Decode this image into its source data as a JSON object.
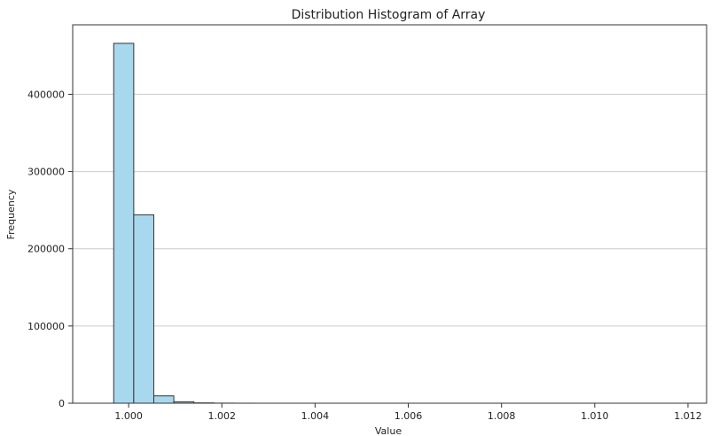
{
  "chart_data": {
    "type": "bar",
    "title": "Distribution Histogram of Array",
    "xlabel": "Value",
    "ylabel": "Frequency",
    "xlim": [
      0.9988,
      1.0124
    ],
    "ylim": [
      0,
      490000
    ],
    "xticks": [
      1.0,
      1.002,
      1.004,
      1.006,
      1.008,
      1.01,
      1.012
    ],
    "xtick_labels": [
      "1.000",
      "1.002",
      "1.004",
      "1.006",
      "1.008",
      "1.010",
      "1.012"
    ],
    "yticks": [
      0,
      100000,
      200000,
      300000,
      400000
    ],
    "ytick_labels": [
      "0",
      "100000",
      "200000",
      "300000",
      "400000"
    ],
    "grid": "y",
    "colors": {
      "bar_fill": "#a8d8ee",
      "bar_edge": "#333333",
      "grid": "#cccccc"
    },
    "bins": [
      {
        "start": 0.99968,
        "end": 1.00011,
        "count": 466000
      },
      {
        "start": 1.00011,
        "end": 1.00054,
        "count": 244000
      },
      {
        "start": 1.00054,
        "end": 1.00097,
        "count": 9500
      },
      {
        "start": 1.00097,
        "end": 1.0014,
        "count": 1800
      },
      {
        "start": 1.0014,
        "end": 1.00183,
        "count": 400
      },
      {
        "start": 1.00183,
        "end": 1.00226,
        "count": 100
      },
      {
        "start": 1.00226,
        "end": 1.00269,
        "count": 30
      },
      {
        "start": 1.00269,
        "end": 1.00312,
        "count": 0
      },
      {
        "start": 1.00312,
        "end": 1.00355,
        "count": 0
      },
      {
        "start": 1.00355,
        "end": 1.00398,
        "count": 0
      },
      {
        "start": 1.00398,
        "end": 1.00441,
        "count": 0
      },
      {
        "start": 1.00441,
        "end": 1.00484,
        "count": 0
      },
      {
        "start": 1.00484,
        "end": 1.00527,
        "count": 0
      },
      {
        "start": 1.00527,
        "end": 1.0057,
        "count": 0
      },
      {
        "start": 1.0057,
        "end": 1.00613,
        "count": 0
      },
      {
        "start": 1.00613,
        "end": 1.00656,
        "count": 0
      },
      {
        "start": 1.00656,
        "end": 1.00699,
        "count": 0
      },
      {
        "start": 1.00699,
        "end": 1.00742,
        "count": 0
      },
      {
        "start": 1.00742,
        "end": 1.00785,
        "count": 0
      },
      {
        "start": 1.00785,
        "end": 1.00828,
        "count": 0
      },
      {
        "start": 1.00828,
        "end": 1.00871,
        "count": 0
      },
      {
        "start": 1.00871,
        "end": 1.00914,
        "count": 0
      },
      {
        "start": 1.00914,
        "end": 1.00957,
        "count": 0
      },
      {
        "start": 1.00957,
        "end": 1.01,
        "count": 0
      },
      {
        "start": 1.01,
        "end": 1.01043,
        "count": 0
      },
      {
        "start": 1.01043,
        "end": 1.01086,
        "count": 0
      },
      {
        "start": 1.01086,
        "end": 1.01129,
        "count": 0
      },
      {
        "start": 1.01129,
        "end": 1.01172,
        "count": 0
      },
      {
        "start": 1.01172,
        "end": 1.01215,
        "count": 0
      },
      {
        "start": 1.01215,
        "end": 1.01258,
        "count": 0
      }
    ]
  }
}
